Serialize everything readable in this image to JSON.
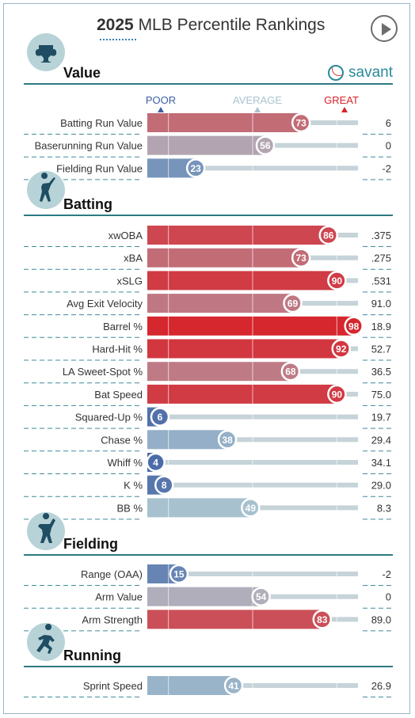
{
  "header": {
    "year": "2025",
    "title": "MLB Percentile Rankings"
  },
  "brand": {
    "name": "savant"
  },
  "scale_labels": {
    "poor": "POOR",
    "average": "AVERAGE",
    "great": "GREAT"
  },
  "colors": {
    "section_rule": "#2d7a83",
    "poor": "#3e5fa3",
    "average": "#a9c3d0",
    "great": "#d82129",
    "track": "#c6d3d8"
  },
  "chart_data": {
    "type": "bar",
    "orientation": "horizontal",
    "xlim": [
      0,
      100
    ],
    "sections": [
      {
        "name": "Value",
        "icon": "trophy-icon",
        "metrics": [
          {
            "label": "Batting Run Value",
            "percentile": 73,
            "value": "6"
          },
          {
            "label": "Baserunning Run Value",
            "percentile": 56,
            "value": "0"
          },
          {
            "label": "Fielding Run Value",
            "percentile": 23,
            "value": "-2"
          }
        ]
      },
      {
        "name": "Batting",
        "icon": "batter-icon",
        "metrics": [
          {
            "label": "xwOBA",
            "percentile": 86,
            "value": ".375"
          },
          {
            "label": "xBA",
            "percentile": 73,
            "value": ".275"
          },
          {
            "label": "xSLG",
            "percentile": 90,
            "value": ".531"
          },
          {
            "label": "Avg Exit Velocity",
            "percentile": 69,
            "value": "91.0"
          },
          {
            "label": "Barrel %",
            "percentile": 98,
            "value": "18.9"
          },
          {
            "label": "Hard-Hit %",
            "percentile": 92,
            "value": "52.7"
          },
          {
            "label": "LA Sweet-Spot %",
            "percentile": 68,
            "value": "36.5"
          },
          {
            "label": "Bat Speed",
            "percentile": 90,
            "value": "75.0"
          },
          {
            "label": "Squared-Up %",
            "percentile": 6,
            "value": "19.7"
          },
          {
            "label": "Chase %",
            "percentile": 38,
            "value": "29.4"
          },
          {
            "label": "Whiff %",
            "percentile": 4,
            "value": "34.1"
          },
          {
            "label": "K %",
            "percentile": 8,
            "value": "29.0"
          },
          {
            "label": "BB %",
            "percentile": 49,
            "value": "8.3"
          }
        ]
      },
      {
        "name": "Fielding",
        "icon": "fielder-icon",
        "metrics": [
          {
            "label": "Range (OAA)",
            "percentile": 15,
            "value": "-2"
          },
          {
            "label": "Arm Value",
            "percentile": 54,
            "value": "0"
          },
          {
            "label": "Arm Strength",
            "percentile": 83,
            "value": "89.0"
          }
        ]
      },
      {
        "name": "Running",
        "icon": "runner-icon",
        "metrics": [
          {
            "label": "Sprint Speed",
            "percentile": 41,
            "value": "26.9"
          }
        ]
      }
    ]
  }
}
